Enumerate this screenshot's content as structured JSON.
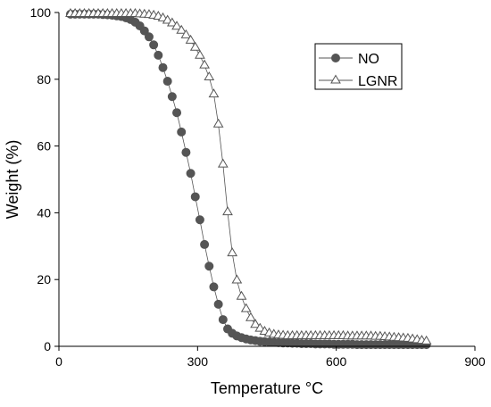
{
  "chart_data": {
    "type": "scatter",
    "title": "",
    "xlabel": "Temperature °C",
    "ylabel": "Weight (%)",
    "xlim": [
      0,
      900
    ],
    "ylim": [
      0,
      100
    ],
    "xticks": [
      "0",
      "300",
      "600",
      "900"
    ],
    "yticks": [
      "0",
      "20",
      "40",
      "60",
      "80",
      "100"
    ],
    "xtick_values": [
      0,
      300,
      600,
      900
    ],
    "ytick_values": [
      0,
      20,
      40,
      60,
      80,
      100
    ],
    "grid": false,
    "legend_position": "top-right",
    "series": [
      {
        "name": "NO",
        "marker": "filled-circle",
        "color": "#555555",
        "x": [
          25,
          35,
          45,
          55,
          65,
          75,
          85,
          95,
          105,
          115,
          125,
          135,
          145,
          155,
          165,
          175,
          185,
          195,
          205,
          215,
          225,
          235,
          245,
          255,
          265,
          275,
          285,
          295,
          305,
          315,
          325,
          335,
          345,
          355,
          365,
          375,
          385,
          395,
          405,
          415,
          425,
          435,
          445,
          455,
          465,
          475,
          485,
          495,
          505,
          515,
          525,
          535,
          545,
          555,
          565,
          575,
          585,
          595,
          605,
          615,
          625,
          635,
          645,
          655,
          665,
          675,
          685,
          695,
          705,
          715,
          725,
          735,
          745,
          755,
          765,
          775,
          785,
          795
        ],
        "y": [
          99.5,
          99.5,
          99.5,
          99.5,
          99.5,
          99.5,
          99.5,
          99.4,
          99.3,
          99.2,
          99.0,
          98.8,
          98.4,
          97.9,
          97.1,
          96.0,
          94.5,
          92.7,
          90.3,
          87.2,
          83.5,
          79.4,
          74.8,
          70.0,
          64.2,
          58.1,
          51.8,
          44.8,
          37.9,
          30.5,
          24.0,
          17.8,
          12.6,
          8.0,
          5.2,
          3.9,
          3.1,
          2.6,
          2.2,
          1.9,
          1.7,
          1.5,
          1.4,
          1.3,
          1.2,
          1.1,
          1.0,
          1.0,
          0.9,
          0.9,
          0.8,
          0.8,
          0.8,
          0.7,
          0.7,
          0.7,
          0.7,
          0.6,
          0.6,
          0.6,
          0.6,
          0.6,
          0.5,
          0.5,
          0.5,
          0.5,
          0.5,
          0.5,
          0.5,
          0.5,
          0.5,
          0.5,
          0.5,
          0.5,
          0.5,
          0.5,
          0.5,
          0.5
        ]
      },
      {
        "name": "LGNR",
        "marker": "open-triangle",
        "color": "#555555",
        "x": [
          25,
          35,
          45,
          55,
          65,
          75,
          85,
          95,
          105,
          115,
          125,
          135,
          145,
          155,
          165,
          175,
          185,
          195,
          205,
          215,
          225,
          235,
          245,
          255,
          265,
          275,
          285,
          295,
          305,
          315,
          325,
          335,
          345,
          355,
          365,
          375,
          385,
          395,
          405,
          415,
          425,
          435,
          445,
          455,
          465,
          475,
          485,
          495,
          505,
          515,
          525,
          535,
          545,
          555,
          565,
          575,
          585,
          595,
          605,
          615,
          625,
          635,
          645,
          655,
          665,
          675,
          685,
          695,
          705,
          715,
          725,
          735,
          745,
          755,
          765,
          775,
          785,
          795
        ],
        "y": [
          99.6,
          99.6,
          99.6,
          99.6,
          99.6,
          99.6,
          99.6,
          99.6,
          99.6,
          99.6,
          99.6,
          99.6,
          99.6,
          99.6,
          99.6,
          99.5,
          99.4,
          99.3,
          99.1,
          98.8,
          98.3,
          97.6,
          96.8,
          95.8,
          94.6,
          93.2,
          91.6,
          89.5,
          87.1,
          84.2,
          80.6,
          75.5,
          66.5,
          54.5,
          40.2,
          27.9,
          19.8,
          14.9,
          11.2,
          8.5,
          6.5,
          5.3,
          4.4,
          3.9,
          3.5,
          3.3,
          3.2,
          3.1,
          3.1,
          3.1,
          3.1,
          3.1,
          3.1,
          3.1,
          3.1,
          3.1,
          3.1,
          3.1,
          3.1,
          3.1,
          3.0,
          3.0,
          3.0,
          3.0,
          3.0,
          3.0,
          2.9,
          2.9,
          2.8,
          2.7,
          2.6,
          2.5,
          2.4,
          2.3,
          2.1,
          1.9,
          1.7,
          1.5
        ]
      }
    ]
  }
}
